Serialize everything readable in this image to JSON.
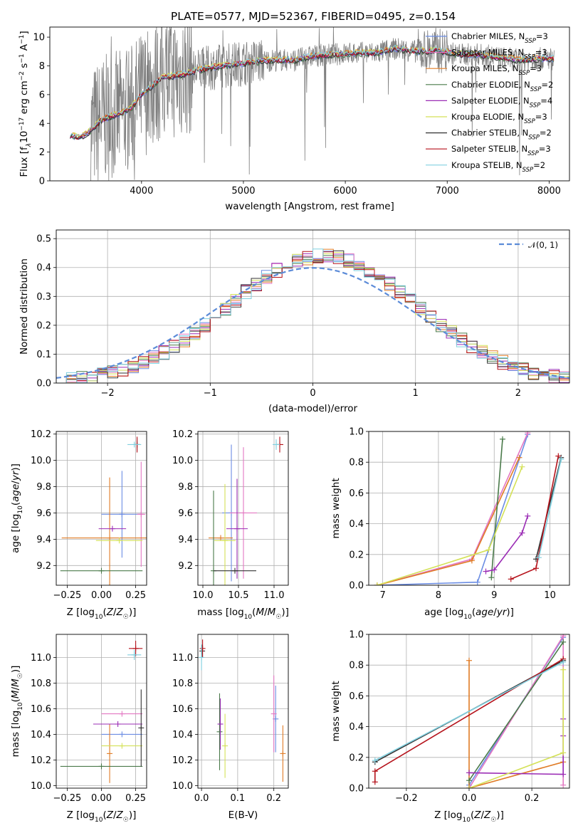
{
  "figure": {
    "title": "PLATE=0577, MJD=52367, FIBERID=0495, z=0.154"
  },
  "colors": {
    "Chabrier MILES": "#6b8de3",
    "Salpeter MILES": "#e377c2",
    "Kroupa MILES": "#e07b25",
    "Chabrier ELODIE": "#4a7a4a",
    "Salpeter ELODIE": "#9b2cb5",
    "Kroupa ELODIE": "#d4e157",
    "Chabrier STELIB": "#333333",
    "Salpeter STELIB": "#b5121b",
    "Kroupa STELIB": "#80d0e0",
    "data": "#808080",
    "normal": "#5b8bd8",
    "grid": "#b0b0b0"
  },
  "chart_data": [
    {
      "id": "spectrum",
      "type": "line",
      "title": "PLATE=0577, MJD=52367, FIBERID=0495, z=0.154",
      "xlabel": "wavelength [Angstrom, rest frame]",
      "ylabel": "Flux [f_λ 10^-17 erg cm^-2 s^-1 A^-1]",
      "xlim": [
        3100,
        8200
      ],
      "ylim": [
        0,
        10.7
      ],
      "xticks": [
        4000,
        5000,
        6000,
        7000,
        8000
      ],
      "yticks": [
        0,
        2,
        4,
        6,
        8,
        10
      ],
      "grid": false,
      "legend_position": "top-right",
      "continuum": {
        "x": [
          3300,
          3400,
          3500,
          3600,
          3700,
          3800,
          3900,
          4000,
          4100,
          4200,
          4300,
          4400,
          4500,
          4700,
          4900,
          5100,
          5300,
          5500,
          5700,
          5900,
          6100,
          6300,
          6500,
          6700,
          6900,
          7100,
          7300,
          7500,
          7700,
          7900,
          8050
        ],
        "y": [
          3.2,
          3.0,
          3.5,
          4.2,
          4.5,
          4.7,
          5.1,
          6.0,
          6.6,
          7.2,
          7.3,
          7.4,
          7.6,
          7.9,
          8.1,
          8.3,
          8.4,
          8.4,
          8.7,
          8.8,
          8.9,
          8.9,
          9.2,
          9.0,
          9.1,
          8.8,
          8.8,
          8.6,
          8.4,
          8.5,
          8.5
        ]
      },
      "legend": [
        {
          "name": "Chabrier MILES",
          "label": "Chabrier MILES, N_SSP=3"
        },
        {
          "name": "Salpeter MILES",
          "label": "Salpeter MILES, N_SSP=3"
        },
        {
          "name": "Kroupa MILES",
          "label": "Kroupa MILES, N_SSP=3"
        },
        {
          "name": "Chabrier ELODIE",
          "label": "Chabrier ELODIE, N_SSP=2"
        },
        {
          "name": "Salpeter ELODIE",
          "label": "Salpeter ELODIE, N_SSP=4"
        },
        {
          "name": "Kroupa ELODIE",
          "label": "Kroupa ELODIE, N_SSP=3"
        },
        {
          "name": "Chabrier STELIB",
          "label": "Chabrier STELIB, N_SSP=2"
        },
        {
          "name": "Salpeter STELIB",
          "label": "Salpeter STELIB, N_SSP=3"
        },
        {
          "name": "Kroupa STELIB",
          "label": "Kroupa STELIB, N_SSP=2"
        }
      ]
    },
    {
      "id": "residuals",
      "type": "line",
      "xlabel": "(data-model)/error",
      "ylabel": "Normed distribution",
      "xlim": [
        -2.5,
        2.5
      ],
      "ylim": [
        0,
        0.53
      ],
      "xticks": [
        -2,
        -1,
        0,
        1,
        2
      ],
      "xtick_labels": [
        "−2",
        "−1",
        "0",
        "1",
        "2"
      ],
      "yticks": [
        0.0,
        0.1,
        0.2,
        0.3,
        0.4,
        0.5
      ],
      "grid": true,
      "legend_position": "top-right",
      "legend_label": "𝒩(0, 1)",
      "bin_width": 0.1,
      "series": [
        {
          "name": "Chabrier MILES",
          "y": [
            0.01,
            0.02,
            0.03,
            0.05,
            0.06,
            0.08,
            0.11,
            0.14,
            0.16,
            0.21,
            0.25,
            0.29,
            0.32,
            0.34,
            0.37,
            0.4,
            0.42,
            0.45,
            0.46,
            0.46,
            0.44,
            0.43,
            0.4,
            0.37,
            0.34,
            0.29,
            0.24,
            0.2,
            0.16,
            0.13,
            0.1,
            0.08,
            0.06,
            0.04,
            0.03,
            0.02,
            0.02,
            0.01,
            0.01,
            0.01,
            0.01,
            0.0,
            0.0,
            0.0,
            0.0,
            0.0,
            0.0,
            0.0,
            0.0,
            0.0
          ]
        }
      ]
    },
    {
      "id": "age_vs_Z",
      "type": "scatter",
      "xlabel": "Z [log10(Z/Z☉)]",
      "ylabel": "age [log10(age/yr)]",
      "xlim": [
        -0.33,
        0.33
      ],
      "ylim": [
        9.05,
        10.22
      ],
      "xticks": [
        -0.25,
        0.0,
        0.25
      ],
      "xtick_labels": [
        "−0.25",
        "0.00",
        "0.25"
      ],
      "yticks": [
        9.2,
        9.4,
        9.6,
        9.8,
        10.0,
        10.2
      ],
      "grid": true,
      "points": [
        {
          "name": "Chabrier MILES",
          "x": 0.15,
          "y": 9.59,
          "xerr": 0.15,
          "yerr": 0.33
        },
        {
          "name": "Salpeter MILES",
          "x": 0.29,
          "y": 9.59,
          "xerr": 0.03,
          "yerr": 0.4
        },
        {
          "name": "Kroupa MILES",
          "x": 0.06,
          "y": 9.41,
          "xerr": 0.35,
          "yerr": 0.46
        },
        {
          "name": "Chabrier ELODIE",
          "x": 0.0,
          "y": 9.16,
          "xerr": 0.3,
          "yerr": 0.0
        },
        {
          "name": "Salpeter ELODIE",
          "x": 0.08,
          "y": 9.48,
          "xerr": 0.1,
          "yerr": 0.0
        },
        {
          "name": "Kroupa ELODIE",
          "x": 0.13,
          "y": 9.39,
          "xerr": 0.17,
          "yerr": 0.0
        },
        {
          "name": "Chabrier STELIB",
          "x": 0.26,
          "y": 10.12,
          "xerr": 0.0,
          "yerr": 0.05
        },
        {
          "name": "Salpeter STELIB",
          "x": 0.26,
          "y": 10.12,
          "xerr": 0.0,
          "yerr": 0.06
        },
        {
          "name": "Kroupa STELIB",
          "x": 0.24,
          "y": 10.12,
          "xerr": 0.05,
          "yerr": 0.0
        }
      ]
    },
    {
      "id": "age_vs_mass",
      "type": "scatter",
      "xlabel": "mass [log10(M/M☉)]",
      "xlim": [
        9.93,
        11.2
      ],
      "ylim": [
        9.05,
        10.22
      ],
      "xticks": [
        10.0,
        10.5,
        11.0
      ],
      "xtick_labels": [
        "10.0",
        "10.5",
        "11.0"
      ],
      "yticks": [
        9.2,
        9.4,
        9.6,
        9.8,
        10.0,
        10.2
      ],
      "grid": true,
      "points": [
        {
          "name": "Chabrier MILES",
          "x": 10.4,
          "y": 9.6,
          "xerr": 0.13,
          "yerr": 0.52
        },
        {
          "name": "Salpeter MILES",
          "x": 10.57,
          "y": 9.6,
          "xerr": 0.19,
          "yerr": 0.5
        },
        {
          "name": "Kroupa MILES",
          "x": 10.25,
          "y": 9.41,
          "xerr": 0.17,
          "yerr": 0.0
        },
        {
          "name": "Chabrier ELODIE",
          "x": 10.15,
          "y": 9.16,
          "xerr": 0.0,
          "yerr": 0.61
        },
        {
          "name": "Salpeter ELODIE",
          "x": 10.48,
          "y": 9.48,
          "xerr": 0.15,
          "yerr": 0.38
        },
        {
          "name": "Kroupa ELODIE",
          "x": 10.31,
          "y": 9.39,
          "xerr": 0.15,
          "yerr": 0.43
        },
        {
          "name": "Chabrier STELIB",
          "x": 10.45,
          "y": 9.16,
          "xerr": 0.3,
          "yerr": 0.0
        },
        {
          "name": "Salpeter STELIB",
          "x": 11.08,
          "y": 10.12,
          "xerr": 0.05,
          "yerr": 0.06
        },
        {
          "name": "Kroupa STELIB",
          "x": 11.03,
          "y": 10.12,
          "xerr": 0.05,
          "yerr": 0.04
        }
      ]
    },
    {
      "id": "weight_vs_age",
      "type": "line",
      "xlabel": "age [log10(age/yr)]",
      "ylabel": "mass weight",
      "xlim": [
        6.75,
        10.35
      ],
      "ylim": [
        0,
        1.0
      ],
      "xticks": [
        7,
        8,
        9,
        10
      ],
      "yticks": [
        0.0,
        0.2,
        0.4,
        0.6,
        0.8,
        1.0
      ],
      "grid": true,
      "series": [
        {
          "name": "Chabrier MILES",
          "x": [
            6.9,
            8.7,
            9.6
          ],
          "y": [
            0.0,
            0.02,
            0.98
          ]
        },
        {
          "name": "Salpeter MILES",
          "x": [
            6.9,
            8.6,
            9.6
          ],
          "y": [
            0.0,
            0.17,
            0.99
          ]
        },
        {
          "name": "Kroupa MILES",
          "x": [
            6.9,
            8.6,
            9.45
          ],
          "y": [
            0.0,
            0.16,
            0.83
          ]
        },
        {
          "name": "Chabrier ELODIE",
          "x": [
            8.95,
            9.15
          ],
          "y": [
            0.05,
            0.95
          ]
        },
        {
          "name": "Salpeter ELODIE",
          "x": [
            8.85,
            9.0,
            9.5,
            9.6
          ],
          "y": [
            0.09,
            0.1,
            0.34,
            0.45
          ]
        },
        {
          "name": "Kroupa ELODIE",
          "x": [
            6.9,
            8.9,
            9.5
          ],
          "y": [
            0.0,
            0.23,
            0.77
          ]
        },
        {
          "name": "Chabrier STELIB",
          "x": [
            9.75,
            10.2
          ],
          "y": [
            0.17,
            0.83
          ]
        },
        {
          "name": "Salpeter STELIB",
          "x": [
            9.3,
            9.75,
            10.15
          ],
          "y": [
            0.04,
            0.11,
            0.84
          ]
        },
        {
          "name": "Kroupa STELIB",
          "x": [
            9.8,
            10.2
          ],
          "y": [
            0.18,
            0.82
          ]
        }
      ]
    },
    {
      "id": "mass_vs_Z",
      "type": "scatter",
      "xlabel": "Z [log10(Z/Z☉)]",
      "ylabel": "mass [log10(M/M☉)]",
      "xlim": [
        -0.33,
        0.33
      ],
      "ylim": [
        9.98,
        11.18
      ],
      "xticks": [
        -0.25,
        0.0,
        0.25
      ],
      "xtick_labels": [
        "−0.25",
        "0.00",
        "0.25"
      ],
      "yticks": [
        10.0,
        10.2,
        10.4,
        10.6,
        10.8,
        11.0
      ],
      "grid": true,
      "points": [
        {
          "name": "Chabrier MILES",
          "x": 0.15,
          "y": 10.4,
          "xerr": 0.15,
          "yerr": 0.0
        },
        {
          "name": "Salpeter MILES",
          "x": 0.15,
          "y": 10.56,
          "xerr": 0.15,
          "yerr": 0.0
        },
        {
          "name": "Kroupa MILES",
          "x": 0.06,
          "y": 10.25,
          "xerr": 0.0,
          "yerr": 0.23
        },
        {
          "name": "Chabrier ELODIE",
          "x": 0.0,
          "y": 10.15,
          "xerr": 0.3,
          "yerr": 0.0
        },
        {
          "name": "Salpeter ELODIE",
          "x": 0.12,
          "y": 10.48,
          "xerr": 0.18,
          "yerr": 0.0
        },
        {
          "name": "Kroupa ELODIE",
          "x": 0.15,
          "y": 10.31,
          "xerr": 0.15,
          "yerr": 0.0
        },
        {
          "name": "Chabrier STELIB",
          "x": 0.29,
          "y": 10.45,
          "xerr": 0.0,
          "yerr": 0.3
        },
        {
          "name": "Salpeter STELIB",
          "x": 0.25,
          "y": 11.07,
          "xerr": 0.05,
          "yerr": 0.06
        },
        {
          "name": "Kroupa STELIB",
          "x": 0.24,
          "y": 11.02,
          "xerr": 0.05,
          "yerr": 0.04
        }
      ]
    },
    {
      "id": "mass_vs_ebv",
      "type": "scatter",
      "xlabel": "E(B-V)",
      "xlim": [
        -0.01,
        0.24
      ],
      "ylim": [
        9.98,
        11.18
      ],
      "xticks": [
        0.0,
        0.1,
        0.2
      ],
      "xtick_labels": [
        "0.0",
        "0.1",
        "0.2"
      ],
      "yticks": [
        10.0,
        10.2,
        10.4,
        10.6,
        10.8,
        11.0
      ],
      "grid": true,
      "points": [
        {
          "name": "Chabrier MILES",
          "x": 0.205,
          "y": 10.52,
          "xerr": 0.0,
          "yerr": 0.26
        },
        {
          "name": "Salpeter MILES",
          "x": 0.2,
          "y": 10.56,
          "xerr": 0.0,
          "yerr": 0.3
        },
        {
          "name": "Kroupa MILES",
          "x": 0.225,
          "y": 10.25,
          "xerr": 0.0,
          "yerr": 0.22
        },
        {
          "name": "Chabrier ELODIE",
          "x": 0.05,
          "y": 10.42,
          "xerr": 0.0,
          "yerr": 0.3
        },
        {
          "name": "Salpeter ELODIE",
          "x": 0.052,
          "y": 10.48,
          "xerr": 0.0,
          "yerr": 0.2
        },
        {
          "name": "Kroupa ELODIE",
          "x": 0.065,
          "y": 10.31,
          "xerr": 0.0,
          "yerr": 0.25
        },
        {
          "name": "Chabrier STELIB",
          "x": 0.002,
          "y": 11.05,
          "xerr": 0.0,
          "yerr": 0.05
        },
        {
          "name": "Salpeter STELIB",
          "x": 0.003,
          "y": 11.07,
          "xerr": 0.0,
          "yerr": 0.07
        },
        {
          "name": "Kroupa STELIB",
          "x": 0.0,
          "y": 11.0,
          "xerr": 0.0,
          "yerr": 0.1
        }
      ]
    },
    {
      "id": "weight_vs_Z",
      "type": "line",
      "xlabel": "Z [log10(Z/Z☉)]",
      "ylabel": "mass weight",
      "xlim": [
        -0.32,
        0.32
      ],
      "ylim": [
        0,
        1.0
      ],
      "xticks": [
        -0.2,
        0.0,
        0.2
      ],
      "xtick_labels": [
        "−0.2",
        "0.0",
        "0.2"
      ],
      "yticks": [
        0.0,
        0.2,
        0.4,
        0.6,
        0.8,
        1.0
      ],
      "grid": true,
      "series": [
        {
          "name": "Chabrier MILES",
          "x": [
            0.0,
            0.0,
            0.3
          ],
          "y": [
            0.0,
            0.02,
            0.98
          ]
        },
        {
          "name": "Salpeter MILES",
          "x": [
            0.0,
            0.3,
            0.3
          ],
          "y": [
            0.0,
            0.99,
            0.02
          ]
        },
        {
          "name": "Kroupa MILES",
          "x": [
            0.0,
            0.0,
            0.3
          ],
          "y": [
            0.83,
            0.0,
            0.17
          ]
        },
        {
          "name": "Chabrier ELODIE",
          "x": [
            0.0,
            0.3
          ],
          "y": [
            0.05,
            0.95
          ]
        },
        {
          "name": "Salpeter ELODIE",
          "x": [
            0.0,
            0.3,
            0.3,
            0.3
          ],
          "y": [
            0.1,
            0.09,
            0.34,
            0.45
          ]
        },
        {
          "name": "Kroupa ELODIE",
          "x": [
            0.0,
            0.3,
            0.3
          ],
          "y": [
            0.0,
            0.23,
            0.77
          ]
        },
        {
          "name": "Chabrier STELIB",
          "x": [
            -0.3,
            0.3
          ],
          "y": [
            0.17,
            0.83
          ]
        },
        {
          "name": "Salpeter STELIB",
          "x": [
            -0.3,
            -0.3,
            0.3
          ],
          "y": [
            0.04,
            0.11,
            0.84
          ]
        },
        {
          "name": "Kroupa STELIB",
          "x": [
            -0.3,
            0.3
          ],
          "y": [
            0.18,
            0.82
          ]
        }
      ]
    }
  ]
}
